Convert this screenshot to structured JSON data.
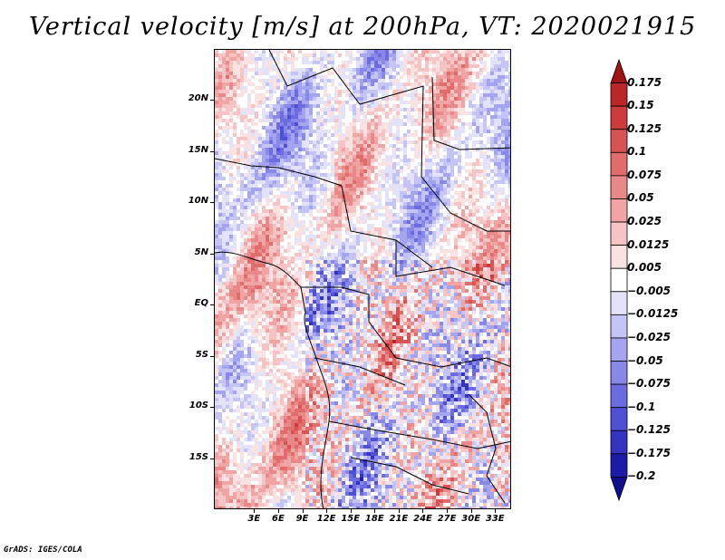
{
  "title": "Vertical velocity [m/s] at 200hPa, VT: 2020021915",
  "footer": "GrADS: IGES/COLA",
  "map": {
    "lat_range": [
      -20,
      25
    ],
    "lon_range": [
      -2,
      35
    ],
    "lat_ticks": [
      {
        "lat": 20,
        "label": "20N"
      },
      {
        "lat": 15,
        "label": "15N"
      },
      {
        "lat": 10,
        "label": "10N"
      },
      {
        "lat": 5,
        "label": "5N"
      },
      {
        "lat": 0,
        "label": "EQ"
      },
      {
        "lat": -5,
        "label": "5S"
      },
      {
        "lat": -10,
        "label": "10S"
      },
      {
        "lat": -15,
        "label": "15S"
      }
    ],
    "lon_ticks": [
      {
        "lon": 3,
        "label": "3E"
      },
      {
        "lon": 6,
        "label": "6E"
      },
      {
        "lon": 9,
        "label": "9E"
      },
      {
        "lon": 12,
        "label": "12E"
      },
      {
        "lon": 15,
        "label": "15E"
      },
      {
        "lon": 18,
        "label": "18E"
      },
      {
        "lon": 21,
        "label": "21E"
      },
      {
        "lon": 24,
        "label": "24E"
      },
      {
        "lon": 27,
        "label": "27E"
      },
      {
        "lon": 30,
        "label": "30E"
      },
      {
        "lon": 33,
        "label": "33E"
      }
    ]
  },
  "colorbar": {
    "labels": [
      "0.175",
      "0.15",
      "0.125",
      "0.1",
      "0.075",
      "0.05",
      "0.025",
      "0.0125",
      "0.005",
      "−0.005",
      "−0.0125",
      "−0.025",
      "−0.05",
      "−0.075",
      "−0.1",
      "−0.125",
      "−0.175",
      "−0.2"
    ],
    "colors": [
      "#a01414",
      "#b82828",
      "#cc3c3c",
      "#d85454",
      "#e06c6c",
      "#e88888",
      "#f0a4a4",
      "#f6c4c4",
      "#fae2e2",
      "#ffffff",
      "#e2e2fa",
      "#c4c4f6",
      "#a4a4f0",
      "#8888e8",
      "#6c6ce0",
      "#5050d4",
      "#3434c0",
      "#1c1ca8",
      "#10108c"
    ]
  }
}
